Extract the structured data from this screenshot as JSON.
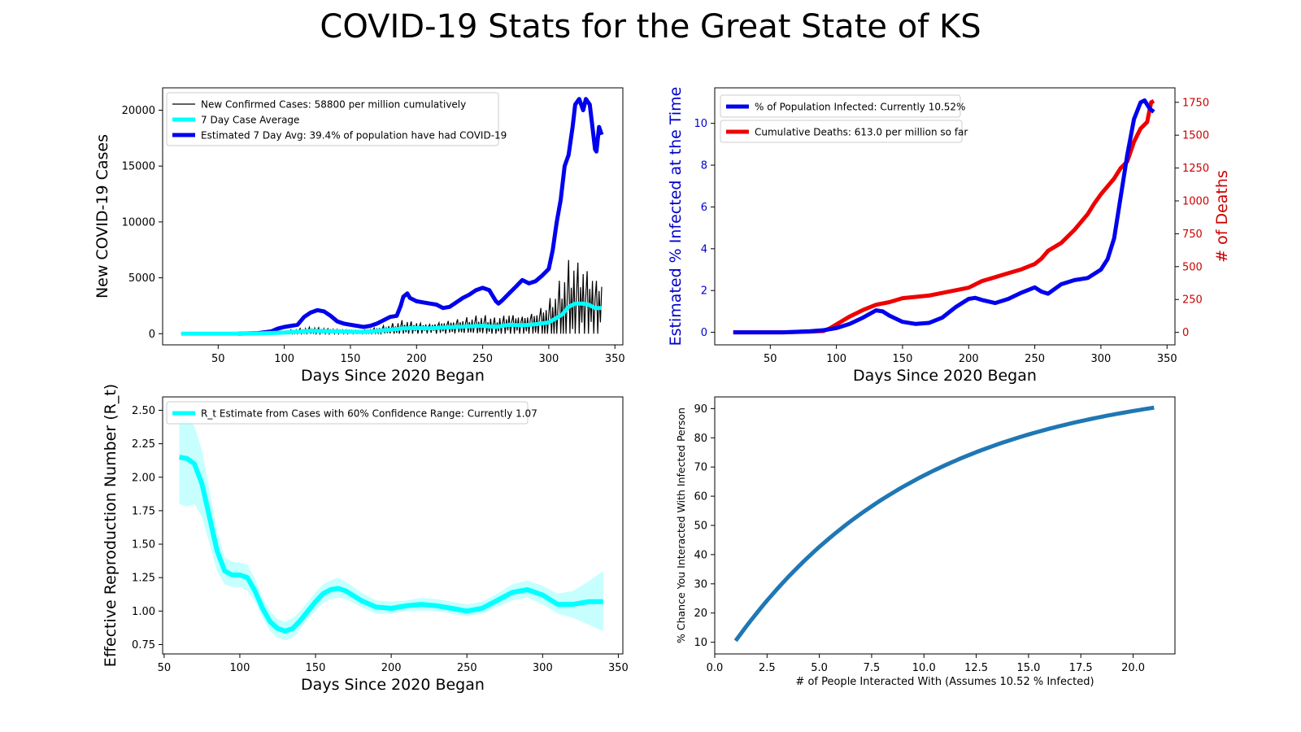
{
  "title": "COVID-19 Stats for the Great State of KS",
  "chart_data": [
    {
      "type": "line",
      "xlabel": "Days Since 2020 Began",
      "ylabel": "New COVID-19 Cases",
      "xlim": [
        8,
        356
      ],
      "ylim": [
        -1000,
        22000
      ],
      "xticks": [
        50,
        100,
        150,
        200,
        250,
        300,
        350
      ],
      "yticks": [
        0,
        5000,
        10000,
        15000,
        20000
      ],
      "ytick_labels": [
        "0",
        "5000",
        "10000",
        "15000",
        "20000"
      ],
      "legend_position": "upper-left",
      "series": [
        {
          "name": "New Confirmed Cases: 58800 per million cumulatively",
          "color": "#000000",
          "base_x": [
            22,
            60,
            80,
            100,
            120,
            140,
            160,
            180,
            190,
            200,
            210,
            220,
            230,
            240,
            250,
            260,
            270,
            280,
            290,
            300,
            310,
            315,
            320,
            325,
            330,
            335,
            340
          ],
          "base_y": [
            0,
            0,
            20,
            100,
            250,
            200,
            150,
            350,
            480,
            500,
            480,
            550,
            600,
            650,
            700,
            600,
            800,
            750,
            850,
            1000,
            1700,
            2400,
            2700,
            2700,
            2600,
            2300,
            2300
          ],
          "weekly_swing": [
            0,
            0,
            40,
            180,
            350,
            250,
            200,
            500,
            800,
            600,
            500,
            700,
            800,
            900,
            1000,
            900,
            1200,
            1100,
            1400,
            2200,
            3500,
            4200,
            4000,
            3600,
            3400,
            3200,
            3000
          ]
        },
        {
          "name": "7 Day Case Average",
          "color": "#00ffff",
          "x": [
            22,
            60,
            80,
            100,
            120,
            140,
            160,
            180,
            190,
            200,
            210,
            220,
            230,
            240,
            250,
            260,
            270,
            280,
            290,
            300,
            310,
            315,
            320,
            325,
            330,
            335,
            340
          ],
          "y": [
            0,
            0,
            20,
            100,
            250,
            200,
            150,
            350,
            480,
            500,
            480,
            550,
            600,
            650,
            700,
            600,
            800,
            750,
            850,
            1000,
            1700,
            2400,
            2700,
            2700,
            2600,
            2300,
            2300
          ]
        },
        {
          "name": "Estimated 7 Day Avg: 39.4% of population have had COVID-19",
          "color": "#0000ee",
          "x": [
            65,
            80,
            90,
            95,
            100,
            110,
            115,
            120,
            125,
            130,
            135,
            140,
            145,
            150,
            155,
            160,
            165,
            170,
            175,
            180,
            185,
            188,
            190,
            193,
            195,
            200,
            205,
            210,
            215,
            220,
            225,
            230,
            235,
            240,
            245,
            250,
            255,
            260,
            262,
            265,
            270,
            275,
            280,
            285,
            290,
            295,
            300,
            303,
            306,
            309,
            312,
            315,
            318,
            320,
            323,
            326,
            328,
            331,
            333,
            335,
            336,
            338,
            340
          ],
          "y": [
            0,
            50,
            200,
            450,
            600,
            800,
            1500,
            1900,
            2100,
            2000,
            1600,
            1100,
            900,
            800,
            700,
            600,
            700,
            900,
            1200,
            1500,
            1600,
            2500,
            3300,
            3600,
            3200,
            2900,
            2800,
            2700,
            2600,
            2300,
            2400,
            2800,
            3200,
            3500,
            3900,
            4100,
            3900,
            2900,
            2700,
            3000,
            3600,
            4200,
            4800,
            4500,
            4700,
            5200,
            5800,
            7500,
            10000,
            12000,
            15000,
            16000,
            18500,
            20500,
            21000,
            20000,
            21000,
            20500,
            18500,
            16500,
            16300,
            18500,
            17800
          ]
        }
      ]
    },
    {
      "type": "line",
      "xlabel": "Days Since 2020 Began",
      "ylabel": "Estimated % Infected at the Time",
      "y2label": "# of Deaths",
      "xlim": [
        8,
        356
      ],
      "ylim": [
        -0.6,
        11.7
      ],
      "y2lim": [
        -95,
        1860
      ],
      "xticks": [
        50,
        100,
        150,
        200,
        250,
        300,
        350
      ],
      "yticks": [
        0,
        2,
        4,
        6,
        8,
        10
      ],
      "y2ticks": [
        0,
        250,
        500,
        750,
        1000,
        1250,
        1500,
        1750
      ],
      "legend_position": "upper-left",
      "series": [
        {
          "name": "% of Population Infected: Currently 10.52%",
          "color": "#0000ee",
          "axis": "left",
          "x": [
            22,
            60,
            80,
            90,
            100,
            110,
            120,
            130,
            135,
            140,
            150,
            160,
            170,
            180,
            190,
            200,
            205,
            210,
            220,
            230,
            240,
            250,
            255,
            260,
            270,
            280,
            290,
            300,
            305,
            310,
            315,
            320,
            325,
            330,
            333,
            335,
            337,
            340
          ],
          "y": [
            0,
            0,
            0.05,
            0.1,
            0.2,
            0.4,
            0.7,
            1.05,
            1.0,
            0.8,
            0.5,
            0.4,
            0.45,
            0.7,
            1.2,
            1.6,
            1.65,
            1.55,
            1.4,
            1.6,
            1.9,
            2.15,
            1.95,
            1.85,
            2.3,
            2.5,
            2.6,
            3.0,
            3.5,
            4.5,
            6.5,
            8.5,
            10.2,
            11.0,
            11.1,
            10.9,
            10.7,
            10.55
          ]
        },
        {
          "name": "Cumulative Deaths: 613.0 per million so far",
          "color": "#ee0000",
          "axis": "right",
          "x": [
            22,
            60,
            80,
            90,
            95,
            100,
            110,
            120,
            130,
            140,
            150,
            160,
            170,
            180,
            190,
            200,
            210,
            220,
            230,
            240,
            250,
            255,
            260,
            270,
            280,
            290,
            295,
            300,
            310,
            315,
            320,
            325,
            330,
            335,
            338,
            340
          ],
          "y": [
            0,
            0,
            5,
            10,
            30,
            60,
            120,
            170,
            210,
            230,
            260,
            270,
            280,
            300,
            320,
            340,
            390,
            420,
            450,
            480,
            520,
            560,
            620,
            680,
            780,
            900,
            980,
            1050,
            1170,
            1250,
            1300,
            1450,
            1550,
            1600,
            1750,
            1760
          ]
        }
      ]
    },
    {
      "type": "line",
      "xlabel": "Days Since 2020 Began",
      "ylabel": "Effective Reproduction Number (R_t)",
      "xlim": [
        49,
        353
      ],
      "ylim": [
        0.68,
        2.6
      ],
      "xticks": [
        50,
        100,
        150,
        200,
        250,
        300,
        350
      ],
      "yticks": [
        0.75,
        1.0,
        1.25,
        1.5,
        1.75,
        2.0,
        2.25,
        2.5
      ],
      "ytick_labels": [
        "0.75",
        "1.00",
        "1.25",
        "1.50",
        "1.75",
        "2.00",
        "2.25",
        "2.50"
      ],
      "legend_position": "upper-left",
      "series": [
        {
          "name": "R_t Estimate from Cases with 60% Confidence Range: Currently 1.07",
          "color": "#00ffff",
          "x": [
            60,
            65,
            70,
            75,
            80,
            85,
            90,
            95,
            100,
            105,
            110,
            115,
            120,
            125,
            130,
            135,
            140,
            145,
            150,
            155,
            160,
            165,
            170,
            180,
            190,
            200,
            210,
            220,
            230,
            240,
            250,
            260,
            270,
            280,
            290,
            300,
            310,
            320,
            330,
            340
          ],
          "y": [
            2.15,
            2.14,
            2.1,
            1.95,
            1.7,
            1.45,
            1.3,
            1.27,
            1.27,
            1.25,
            1.15,
            1.02,
            0.92,
            0.87,
            0.85,
            0.87,
            0.93,
            1.0,
            1.07,
            1.13,
            1.16,
            1.17,
            1.15,
            1.08,
            1.03,
            1.02,
            1.04,
            1.05,
            1.04,
            1.02,
            1.0,
            1.02,
            1.08,
            1.14,
            1.16,
            1.12,
            1.05,
            1.05,
            1.07,
            1.07
          ],
          "lower": [
            1.8,
            1.78,
            1.8,
            1.7,
            1.5,
            1.3,
            1.2,
            1.18,
            1.18,
            1.15,
            1.07,
            0.95,
            0.85,
            0.8,
            0.78,
            0.8,
            0.87,
            0.94,
            1.0,
            1.06,
            1.09,
            1.1,
            1.09,
            1.03,
            0.98,
            0.98,
            1.0,
            1.0,
            1.0,
            0.98,
            0.96,
            0.98,
            1.03,
            1.08,
            1.1,
            1.05,
            0.98,
            0.95,
            0.9,
            0.85
          ],
          "upper": [
            2.5,
            2.45,
            2.38,
            2.2,
            1.9,
            1.6,
            1.4,
            1.37,
            1.36,
            1.35,
            1.24,
            1.1,
            1.0,
            0.94,
            0.92,
            0.95,
            1.0,
            1.07,
            1.14,
            1.2,
            1.23,
            1.25,
            1.22,
            1.14,
            1.08,
            1.07,
            1.08,
            1.1,
            1.09,
            1.07,
            1.05,
            1.07,
            1.13,
            1.2,
            1.23,
            1.19,
            1.13,
            1.15,
            1.22,
            1.3
          ]
        }
      ]
    },
    {
      "type": "line",
      "xlabel": "# of People Interacted With (Assumes 10.52 % Infected)",
      "ylabel": "% Chance You Interacted With Infected Person",
      "xlim": [
        0,
        22
      ],
      "ylim": [
        6,
        94
      ],
      "xticks": [
        0,
        2.5,
        5,
        7.5,
        10,
        12.5,
        15,
        17.5,
        20
      ],
      "xtick_labels": [
        "0.0",
        "2.5",
        "5.0",
        "7.5",
        "10.0",
        "12.5",
        "15.0",
        "17.5",
        "20.0"
      ],
      "yticks": [
        10,
        20,
        30,
        40,
        50,
        60,
        70,
        80,
        90
      ],
      "infected_pct": 10.52,
      "x_range": [
        1,
        21
      ],
      "series": [
        {
          "color": "#1f77b4"
        }
      ]
    }
  ]
}
